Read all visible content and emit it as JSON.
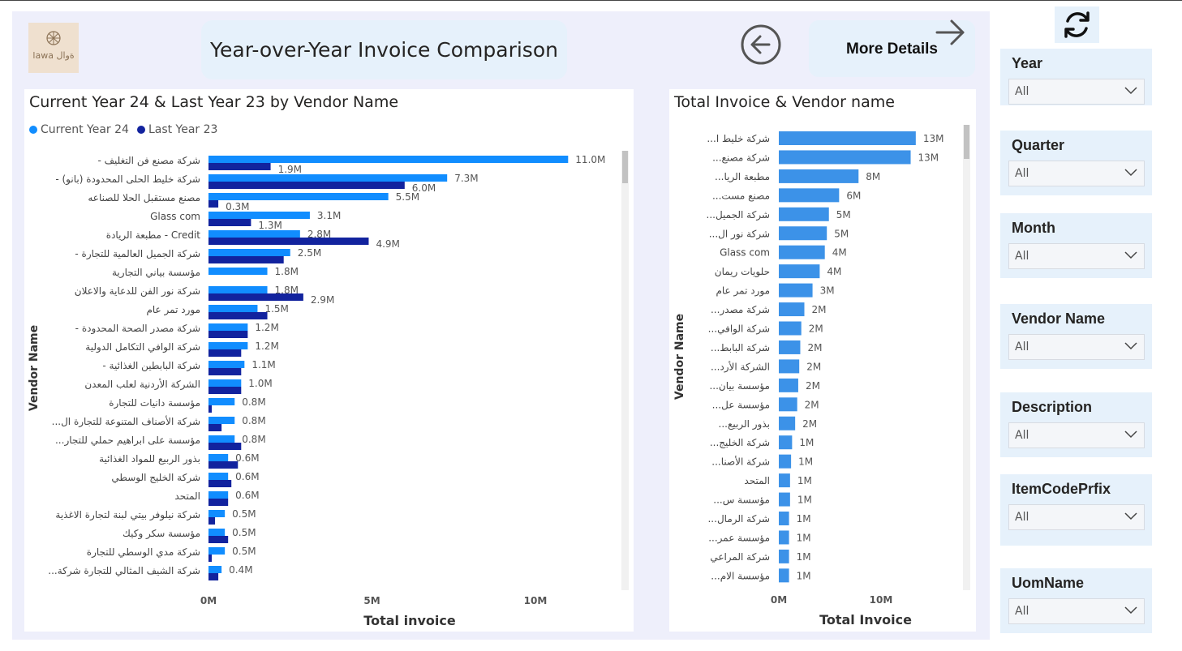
{
  "header": {
    "title": "Year-over-Year Invoice Comparison",
    "more_details": "More Details",
    "logo_text": "lawa ةوال"
  },
  "left_chart": {
    "title": "Current Year 24 & Last Year 23 by Vendor Name",
    "legend": [
      "Current Year 24",
      "Last Year 23"
    ],
    "ylabel": "Vendor Name",
    "xlabel": "Total invoice",
    "colors": {
      "current": "#118dff",
      "last": "#12239e"
    }
  },
  "right_chart": {
    "title": "Total Invoice & Vendor name",
    "ylabel": "Vendor Name",
    "xlabel": "Total Invoice",
    "color": "#3c92e8"
  },
  "chart_data": [
    {
      "type": "bar",
      "orientation": "horizontal",
      "title": "Current Year 24 & Last Year 23 by Vendor Name",
      "xlabel": "Total invoice",
      "ylabel": "Vendor Name",
      "xlim": [
        0,
        12.5
      ],
      "x_ticks": [
        "0M",
        "5M",
        "10M"
      ],
      "categories": [
        "- شركة مصنع فن التغليف",
        "- شركة خليط الحلى المحدودة (بانو)",
        "مصنع مستقبل الحلا للصناعه",
        "Glass com",
        "مطبعة الريادة - Credit",
        "- شركة الجميل العالمية للتجارة",
        "مؤسسة بياني التجارية",
        "شركة نور الفن للدعاية والاعلان",
        "مورد تمر عام",
        "- شركة مصدر الصحة المحدودة",
        "شركة الوافي التكامل الدولية",
        "- شركة البابطين الغذائية",
        "الشركة الأردنية لعلب المعدن",
        "مؤسسة دانيات للتجارة",
        "...شركة الأصناف المتنوعة للتجارة ال",
        "...مؤسسة على ابراهيم حملي للتجار",
        "بذور الربيع للمواد الغذائية",
        "شركة الخليج الوسطي",
        "المتحد",
        "شركة نيلوفر بيتي لبنة لتجارة الاغذية",
        "مؤسسة سكر وكيك",
        "شركة مدي الوسطي للتجارة",
        "...شركة الشيف المثالي للتجارة شركة"
      ],
      "series": [
        {
          "name": "Current Year 24",
          "values": [
            11.0,
            7.3,
            5.5,
            3.1,
            2.8,
            2.5,
            1.8,
            1.8,
            1.5,
            1.2,
            1.2,
            1.1,
            1.0,
            0.8,
            0.8,
            0.8,
            0.6,
            0.6,
            0.6,
            0.5,
            0.5,
            0.5,
            0.4
          ],
          "labels": [
            "11.0M",
            "7.3M",
            "5.5M",
            "3.1M",
            "2.8M",
            "2.5M",
            "1.8M",
            "1.8M",
            "1.5M",
            "1.2M",
            "1.2M",
            "1.1M",
            "1.0M",
            "0.8M",
            "0.8M",
            "0.8M",
            "0.6M",
            "0.6M",
            "0.6M",
            "0.5M",
            "0.5M",
            "0.5M",
            "0.4M"
          ]
        },
        {
          "name": "Last Year 23",
          "values": [
            1.9,
            6.0,
            0.3,
            1.3,
            4.9,
            2.3,
            0,
            2.9,
            1.8,
            1.2,
            1.0,
            1.0,
            1.0,
            0.1,
            0.4,
            1.0,
            0.9,
            0.7,
            0.6,
            0.2,
            0.6,
            0.1,
            0.3
          ],
          "labels": [
            "1.9M",
            "6.0M",
            "0.3M",
            "1.3M",
            "4.9M",
            "",
            "",
            "2.9M",
            "",
            "",
            "",
            "",
            "",
            "",
            "",
            "",
            "",
            "",
            "",
            "",
            "",
            "",
            ""
          ]
        }
      ]
    },
    {
      "type": "bar",
      "orientation": "horizontal",
      "title": "Total Invoice & Vendor name",
      "xlabel": "Total Invoice",
      "ylabel": "Vendor Name",
      "xlim": [
        0,
        17
      ],
      "x_ticks": [
        "0M",
        "10M"
      ],
      "categories": [
        "...شركة خليط ا",
        "...شركة مصنع",
        "...مطبعة الريا",
        "...مصنع مست",
        "...شركة الجميل",
        "...شركة نور ال",
        "Glass com",
        "حلويات ريمان",
        "مورد تمر عام",
        "...شركة مصدر",
        "...شركة الوافي",
        "...شركة البابط",
        "...الشركة الأرد",
        "...مؤسسة بيان",
        "...مؤسسة عل",
        "...بذور الربيع",
        "...شركة الخليج",
        "...شركة الأصنا",
        "المتحد",
        "...مؤسسة س",
        "...شركة الرمال",
        "...مؤسسة عمر",
        "شركة المراعي",
        "...مؤسسة الام"
      ],
      "values": [
        13.4,
        12.9,
        7.8,
        5.9,
        4.9,
        4.7,
        4.5,
        4.0,
        3.3,
        2.5,
        2.2,
        2.1,
        2.0,
        1.9,
        1.8,
        1.6,
        1.3,
        1.2,
        1.1,
        1.1,
        1.0,
        1.0,
        1.0,
        1.0
      ],
      "labels": [
        "13M",
        "13M",
        "8M",
        "6M",
        "5M",
        "5M",
        "4M",
        "4M",
        "3M",
        "2M",
        "2M",
        "2M",
        "2M",
        "2M",
        "2M",
        "2M",
        "1M",
        "1M",
        "1M",
        "1M",
        "1M",
        "1M",
        "1M",
        "1M"
      ]
    }
  ],
  "slicers": [
    {
      "label": "Year",
      "value": "All"
    },
    {
      "label": "Quarter",
      "value": "All"
    },
    {
      "label": "Month",
      "value": "All"
    },
    {
      "label": "Vendor Name",
      "value": "All"
    },
    {
      "label": "Description",
      "value": "All"
    },
    {
      "label": "ItemCodePrfix",
      "value": "All"
    },
    {
      "label": "UomName",
      "value": "All"
    }
  ],
  "icons": {
    "refresh": "refresh-icon",
    "back": "back-arrow-icon",
    "forward": "forward-arrow-icon",
    "dropdown": "chevron-down-icon"
  }
}
